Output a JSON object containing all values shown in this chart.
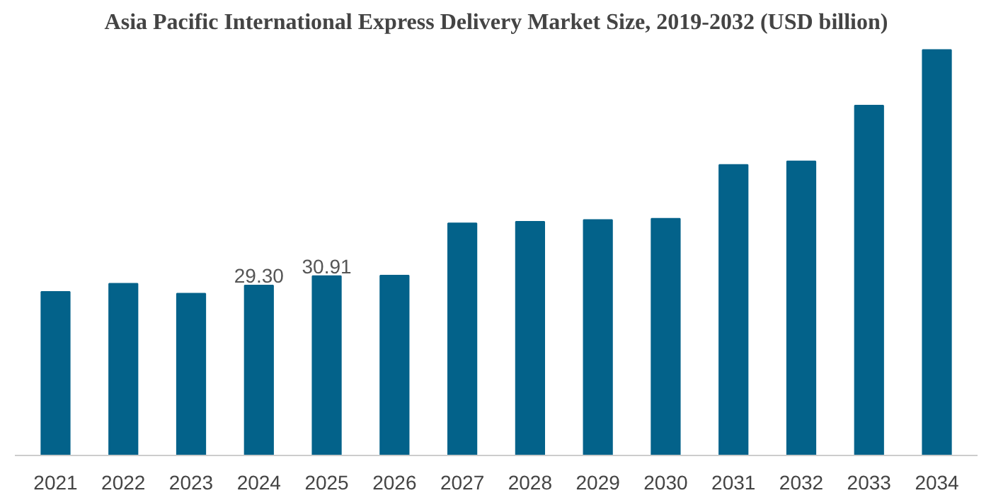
{
  "chart_data": {
    "type": "bar",
    "title": "Asia Pacific International Express Delivery Market Size, 2019-2032 (USD billion)",
    "categories": [
      "2021",
      "2022",
      "2023",
      "2024",
      "2025",
      "2026",
      "2027",
      "2028",
      "2029",
      "2030",
      "2031",
      "2032",
      "2033",
      "2034"
    ],
    "values": [
      28.2,
      29.6,
      27.9,
      29.3,
      30.91,
      31.0,
      40.0,
      40.3,
      40.6,
      40.8,
      50.1,
      50.7,
      60.3,
      69.9
    ],
    "value_labels": [
      null,
      null,
      null,
      "29.30",
      "30.91",
      null,
      null,
      null,
      null,
      null,
      null,
      null,
      null,
      null
    ],
    "color": "#03628a"
  }
}
